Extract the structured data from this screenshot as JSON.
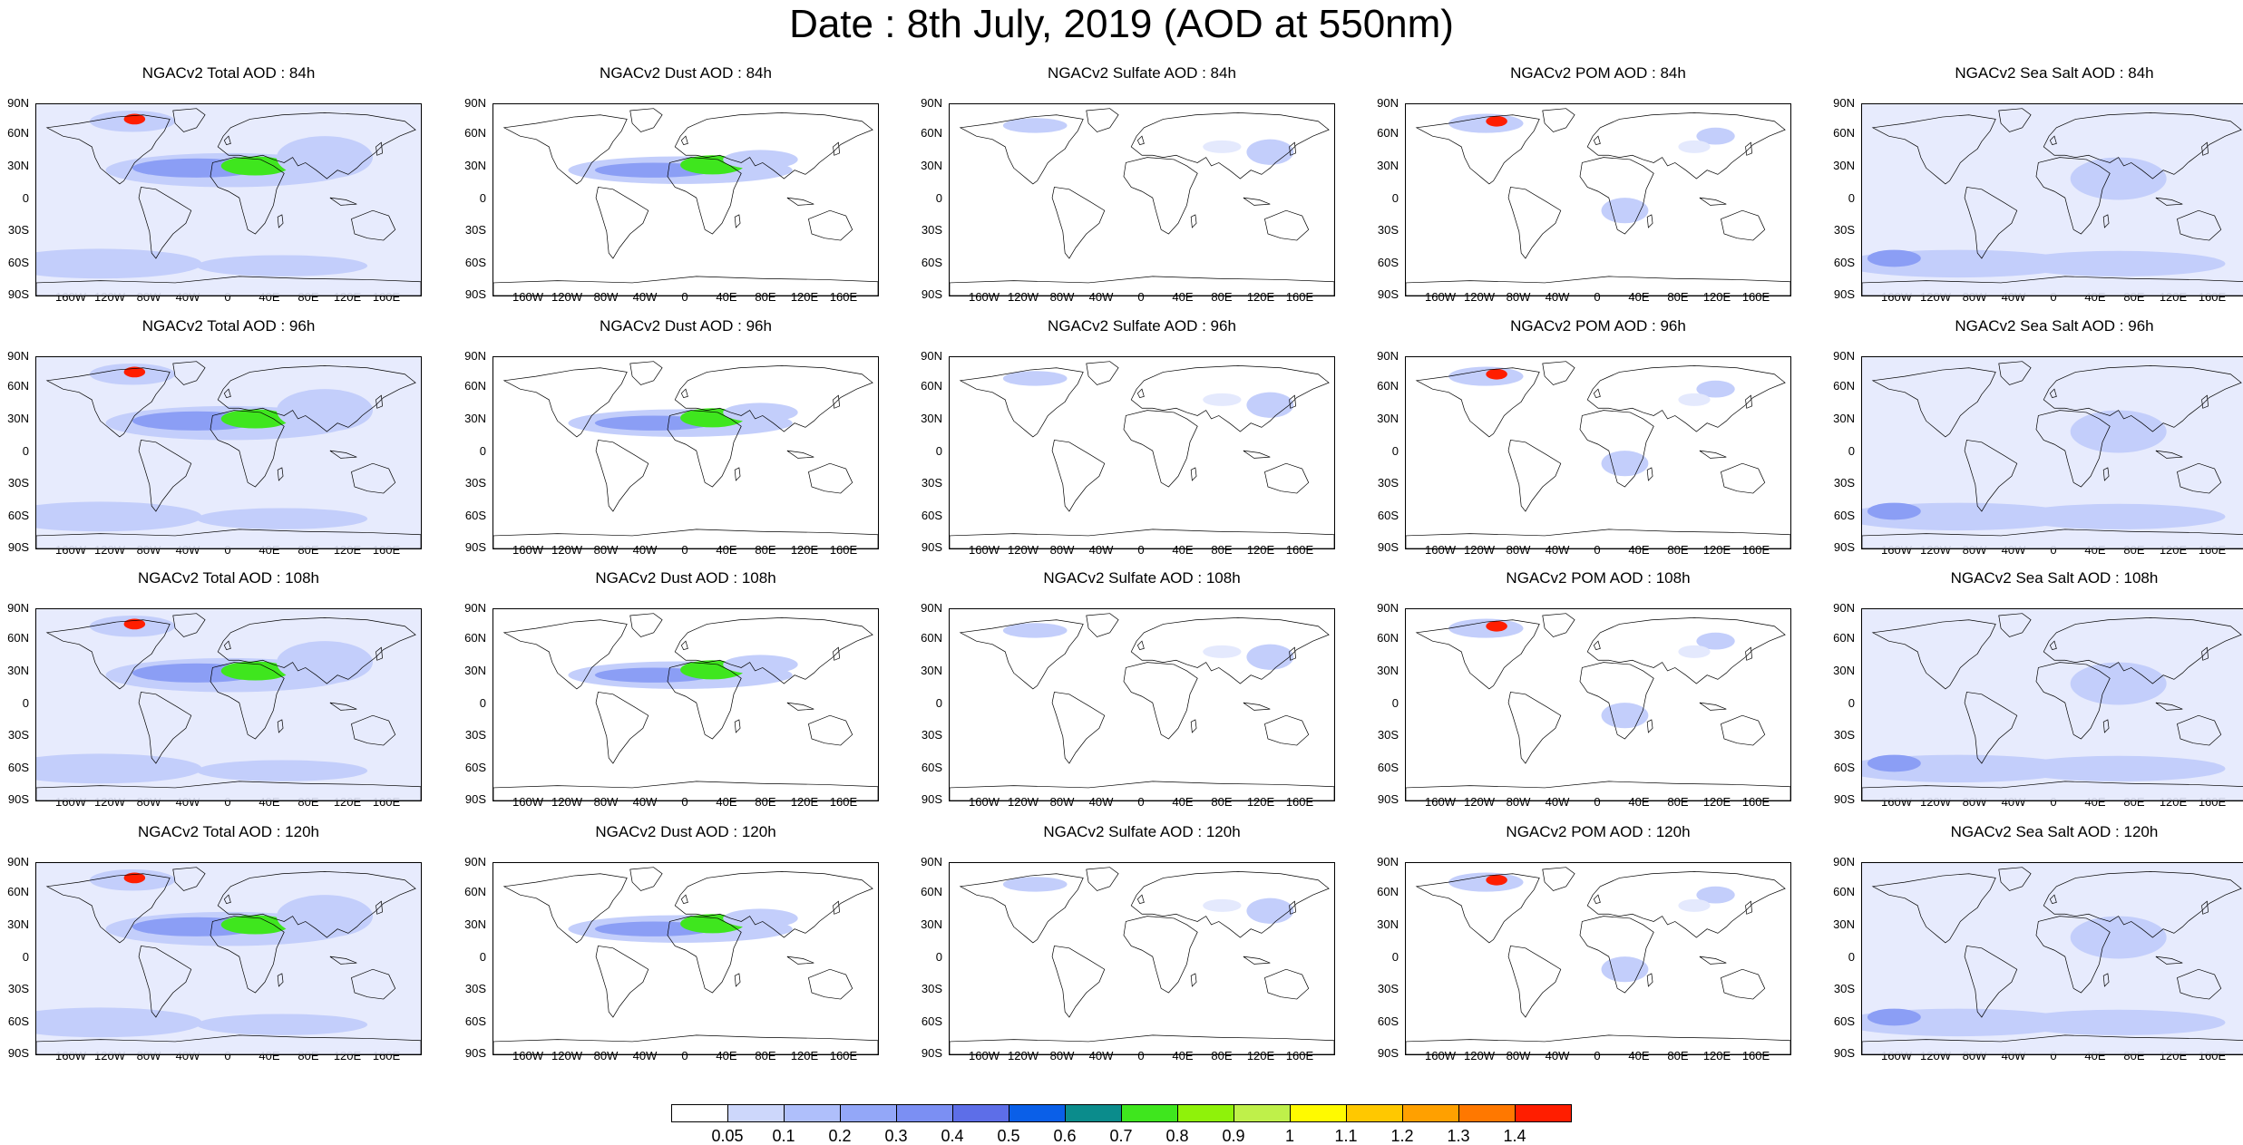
{
  "title": "Date : 8th July, 2019 (AOD at 550nm)",
  "lat_labels": [
    "90N",
    "60N",
    "30N",
    "0",
    "30S",
    "60S",
    "90S"
  ],
  "lon_labels": [
    "160W",
    "120W",
    "80W",
    "40W",
    "0",
    "40E",
    "80E",
    "120E",
    "160E"
  ],
  "panels": [
    {
      "title": "NGACv2 Total AOD : 84h",
      "species": "total"
    },
    {
      "title": "NGACv2 Dust AOD : 84h",
      "species": "dust"
    },
    {
      "title": "NGACv2 Sulfate AOD : 84h",
      "species": "sulfate"
    },
    {
      "title": "NGACv2 POM AOD : 84h",
      "species": "pom"
    },
    {
      "title": "NGACv2 Sea Salt AOD : 84h",
      "species": "seasalt"
    },
    {
      "title": "NGACv2 Total AOD : 96h",
      "species": "total"
    },
    {
      "title": "NGACv2 Dust AOD : 96h",
      "species": "dust"
    },
    {
      "title": "NGACv2 Sulfate AOD : 96h",
      "species": "sulfate"
    },
    {
      "title": "NGACv2 POM AOD : 96h",
      "species": "pom"
    },
    {
      "title": "NGACv2 Sea Salt AOD : 96h",
      "species": "seasalt"
    },
    {
      "title": "NGACv2 Total AOD : 108h",
      "species": "total"
    },
    {
      "title": "NGACv2 Dust AOD : 108h",
      "species": "dust"
    },
    {
      "title": "NGACv2 Sulfate AOD : 108h",
      "species": "sulfate"
    },
    {
      "title": "NGACv2 POM AOD : 108h",
      "species": "pom"
    },
    {
      "title": "NGACv2 Sea Salt AOD : 108h",
      "species": "seasalt"
    },
    {
      "title": "NGACv2 Total AOD : 120h",
      "species": "total"
    },
    {
      "title": "NGACv2 Dust AOD : 120h",
      "species": "dust"
    },
    {
      "title": "NGACv2 Sulfate AOD : 120h",
      "species": "sulfate"
    },
    {
      "title": "NGACv2 POM AOD : 120h",
      "species": "pom"
    },
    {
      "title": "NGACv2 Sea Salt  AOD : 120h",
      "species": "seasalt"
    }
  ],
  "colorbar": {
    "labels": [
      "0.05",
      "0.1",
      "0.2",
      "0.3",
      "0.4",
      "0.5",
      "0.6",
      "0.7",
      "0.8",
      "0.9",
      "1",
      "1.1",
      "1.2",
      "1.3",
      "1.4"
    ],
    "colors": [
      "#ffffff",
      "#cdd7fb",
      "#afbffb",
      "#93a7f8",
      "#7b8ff3",
      "#5d6ee8",
      "#0a5fe8",
      "#0b8c8c",
      "#3fe61e",
      "#8ff20a",
      "#bff04a",
      "#fffa00",
      "#ffc800",
      "#ffa000",
      "#ff7800",
      "#ff1e00"
    ]
  },
  "colors": {
    "haze_light": "#e4e9fd",
    "haze_mid": "#c3cefb",
    "haze_strong": "#8b9ef5",
    "dust_core": "#3fe61e",
    "fire_core": "#ff1e00",
    "coast": "#000000"
  }
}
